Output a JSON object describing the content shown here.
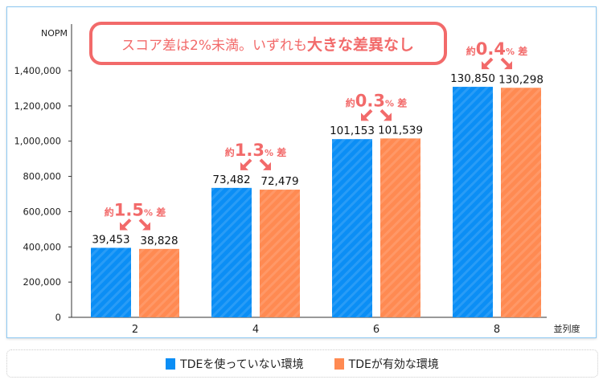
{
  "chart_data": {
    "type": "bar",
    "title": "",
    "ylabel": "NOPM",
    "xlabel": "並列度",
    "ylim": [
      0,
      1400000
    ],
    "yticks": [
      0,
      200000,
      400000,
      600000,
      800000,
      1000000,
      1200000,
      1400000
    ],
    "ytick_labels": [
      "0",
      "200,000",
      "400,000",
      "600,000",
      "800,000",
      "1,000,000",
      "1,200,000",
      "1,400,000"
    ],
    "categories": [
      "2",
      "4",
      "6",
      "8"
    ],
    "series": [
      {
        "name": "TDEを使っていない環境",
        "color": "#0b8ef5",
        "values": [
          394530,
          734820,
          1011530,
          1308500
        ],
        "labels": [
          "39,453",
          "73,482",
          "101,153",
          "130,850"
        ]
      },
      {
        "name": "TDEが有効な環境",
        "color": "#ff8a52",
        "values": [
          388280,
          724790,
          1015390,
          1302980
        ],
        "labels": [
          "38,828",
          "72,479",
          "101,539",
          "130,298"
        ]
      }
    ],
    "annotations": [
      {
        "prefix": "約",
        "value": "1.5",
        "unit": "%",
        "suffix": "差"
      },
      {
        "prefix": "約",
        "value": "1.3",
        "unit": "%",
        "suffix": "差"
      },
      {
        "prefix": "約",
        "value": "0.3",
        "unit": "%",
        "suffix": "差"
      },
      {
        "prefix": "約",
        "value": "0.4",
        "unit": "%",
        "suffix": "差"
      }
    ],
    "callout": {
      "normal": "スコア差は2%未満。いずれも",
      "bold": "大きな差異なし"
    },
    "accent_color": "#f26a6a",
    "grid": false,
    "legend_position": "bottom"
  }
}
